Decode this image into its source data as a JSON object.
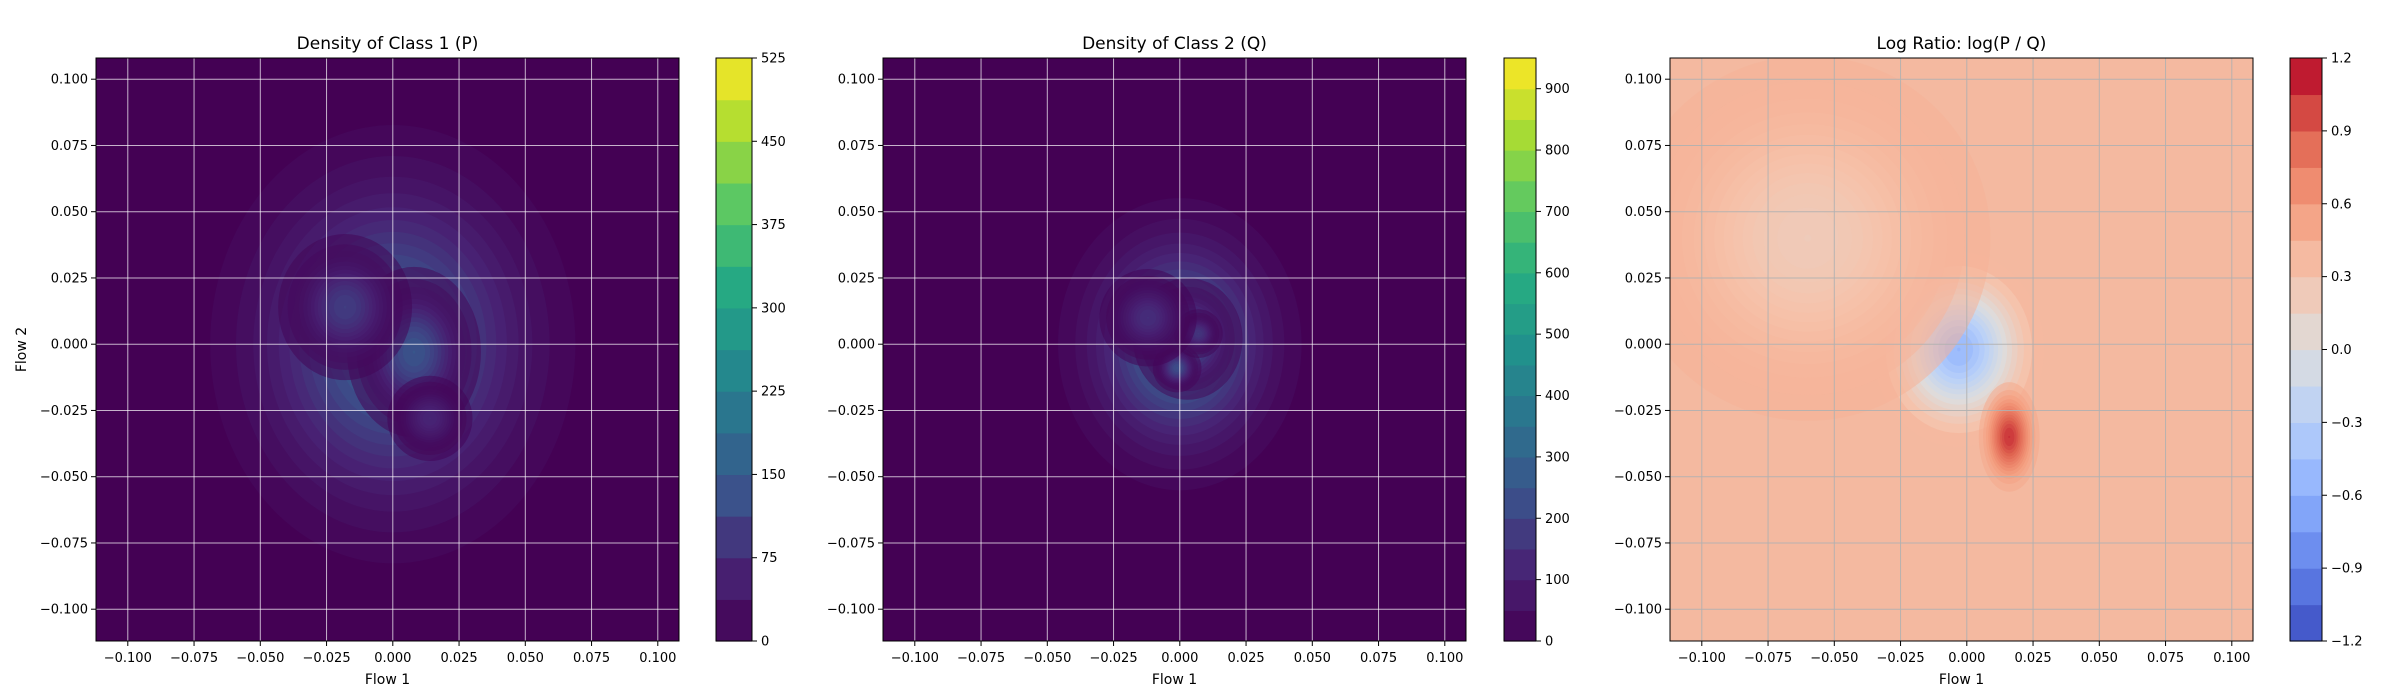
{
  "chart_data": [
    {
      "type": "heatmap",
      "title": "Density of Class 1 (P)",
      "xlabel": "Flow 1",
      "ylabel": "Flow 2",
      "xlim": [
        -0.112,
        0.108
      ],
      "ylim": [
        -0.112,
        0.108
      ],
      "xticks": [
        "−0.100",
        "−0.075",
        "−0.050",
        "−0.025",
        "0.000",
        "0.025",
        "0.050",
        "0.075",
        "0.100"
      ],
      "yticks": [
        "−0.100",
        "−0.075",
        "−0.050",
        "−0.025",
        "0.000",
        "0.025",
        "0.050",
        "0.075",
        "0.100"
      ],
      "grid": true,
      "colormap": "viridis",
      "colorbar": {
        "min": 0,
        "max": 525,
        "ticks": [
          "0",
          "75",
          "150",
          "225",
          "300",
          "375",
          "450",
          "525"
        ]
      },
      "background_color": "#440154",
      "hotspots": [
        {
          "x": 0.0,
          "y": 0.0,
          "peak": 170,
          "sx": 0.03,
          "sy": 0.036
        },
        {
          "x": 0.008,
          "y": -0.003,
          "peak": 150,
          "sx": 0.011,
          "sy": 0.014
        },
        {
          "x": -0.018,
          "y": 0.014,
          "peak": 110,
          "sx": 0.011,
          "sy": 0.012
        },
        {
          "x": 0.014,
          "y": -0.028,
          "peak": 75,
          "sx": 0.007,
          "sy": 0.007
        }
      ]
    },
    {
      "type": "heatmap",
      "title": "Density of Class 2 (Q)",
      "xlabel": "Flow 1",
      "ylabel": "",
      "xlim": [
        -0.112,
        0.108
      ],
      "ylim": [
        -0.112,
        0.108
      ],
      "xticks": [
        "−0.100",
        "−0.075",
        "−0.050",
        "−0.025",
        "0.000",
        "0.025",
        "0.050",
        "0.075",
        "0.100"
      ],
      "yticks": [
        "−0.100",
        "−0.075",
        "−0.050",
        "−0.025",
        "0.000",
        "0.025",
        "0.050",
        "0.075",
        "0.100"
      ],
      "grid": true,
      "colormap": "viridis",
      "colorbar": {
        "min": 0,
        "max": 950,
        "ticks": [
          "0",
          "100",
          "200",
          "300",
          "400",
          "500",
          "600",
          "700",
          "800",
          "900"
        ]
      },
      "background_color": "#440154",
      "hotspots": [
        {
          "x": 0.0,
          "y": 0.0,
          "peak": 330,
          "sx": 0.02,
          "sy": 0.024
        },
        {
          "x": 0.003,
          "y": 0.002,
          "peak": 310,
          "sx": 0.009,
          "sy": 0.01
        },
        {
          "x": -0.001,
          "y": -0.009,
          "peak": 250,
          "sx": 0.004,
          "sy": 0.004
        },
        {
          "x": 0.007,
          "y": 0.004,
          "peak": 180,
          "sx": 0.004,
          "sy": 0.004
        },
        {
          "x": -0.012,
          "y": 0.01,
          "peak": 160,
          "sx": 0.008,
          "sy": 0.008
        }
      ]
    },
    {
      "type": "heatmap",
      "title": "Log Ratio: log(P / Q)",
      "xlabel": "Flow 1",
      "ylabel": "",
      "xlim": [
        -0.112,
        0.108
      ],
      "ylim": [
        -0.112,
        0.108
      ],
      "xticks": [
        "−0.100",
        "−0.075",
        "−0.050",
        "−0.025",
        "0.000",
        "0.025",
        "0.050",
        "0.075",
        "0.100"
      ],
      "yticks": [
        "−0.100",
        "−0.075",
        "−0.050",
        "−0.025",
        "0.000",
        "0.025",
        "0.050",
        "0.075",
        "0.100"
      ],
      "grid": true,
      "colormap": "coolwarm",
      "colorbar": {
        "min": -1.2,
        "max": 1.2,
        "ticks": [
          "−1.2",
          "−0.9",
          "−0.6",
          "−0.3",
          "0.0",
          "0.3",
          "0.6",
          "0.9",
          "1.2"
        ]
      },
      "background_color": "#f4b9a0",
      "background_value": 0.45,
      "hotspots": [
        {
          "x": -0.003,
          "y": -0.002,
          "peak": -1.0,
          "sx": 0.014,
          "sy": 0.016
        },
        {
          "x": 0.016,
          "y": -0.035,
          "peak": 0.65,
          "sx": 0.005,
          "sy": 0.009
        },
        {
          "x": -0.06,
          "y": 0.04,
          "peak": -0.25,
          "sx": 0.03,
          "sy": 0.03
        }
      ]
    }
  ]
}
